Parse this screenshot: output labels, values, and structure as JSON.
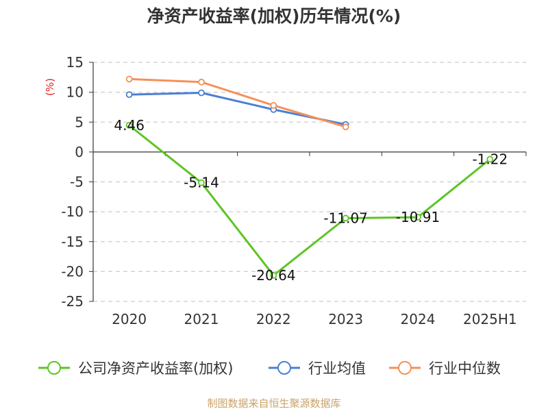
{
  "chart_data": {
    "type": "line",
    "title": "净资产收益率(加权)历年情况(%)",
    "ylabel": "(%)",
    "categories": [
      "2020",
      "2021",
      "2022",
      "2023",
      "2024",
      "2025H1"
    ],
    "ylim": [
      -25,
      15
    ],
    "yticks": [
      15,
      10,
      5,
      0,
      -5,
      -10,
      -15,
      -20,
      -25
    ],
    "grid": true,
    "legend_position": "bottom",
    "series": [
      {
        "name": "公司净资产收益率(加权)",
        "color": "#5cc424",
        "values": [
          4.46,
          -5.14,
          -20.64,
          -11.07,
          -10.91,
          -1.22
        ],
        "labels": [
          "4.46",
          "-5.14",
          "-20.64",
          "-11.07",
          "-10.91",
          "-1.22"
        ]
      },
      {
        "name": "行业均值",
        "color": "#4a7fd4",
        "values": [
          9.6,
          9.9,
          7.1,
          4.6,
          null,
          null
        ]
      },
      {
        "name": "行业中位数",
        "color": "#f5905a",
        "values": [
          12.2,
          11.7,
          7.8,
          4.2,
          null,
          null
        ]
      }
    ]
  },
  "footer": {
    "source": "制图数据来自恒生聚源数据库"
  }
}
